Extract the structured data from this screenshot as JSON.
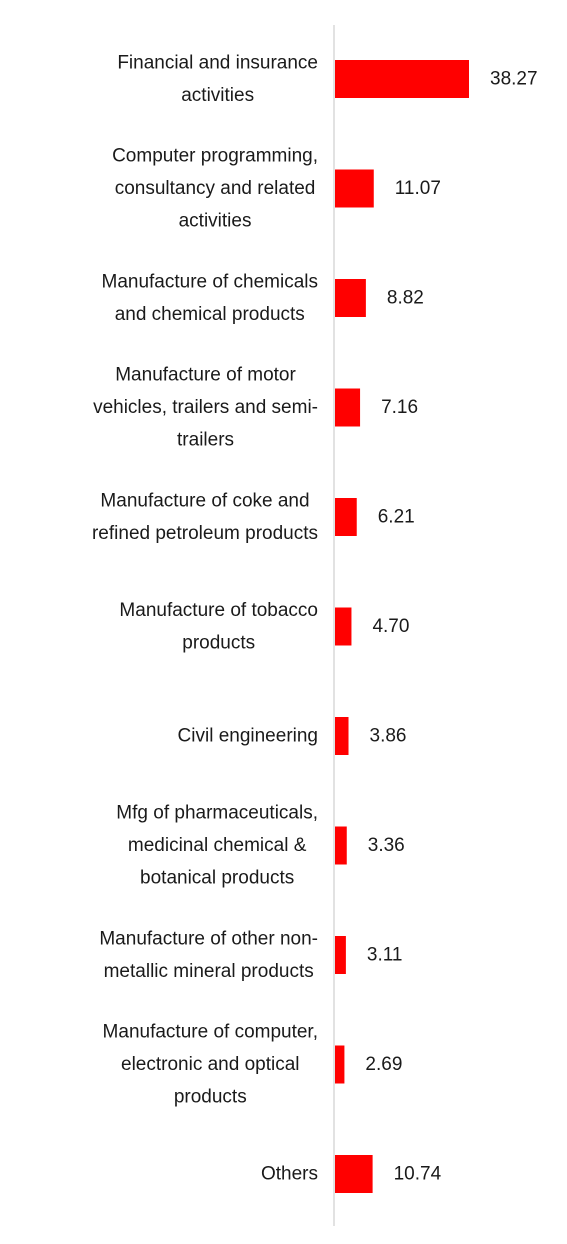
{
  "chart_data": {
    "type": "bar",
    "orientation": "horizontal",
    "categories": [
      [
        "Financial and insurance",
        "activities"
      ],
      [
        "Computer programming,",
        "consultancy and related",
        "activities"
      ],
      [
        "Manufacture of chemicals",
        "and chemical products"
      ],
      [
        "Manufacture of motor",
        "vehicles, trailers and semi-",
        "trailers"
      ],
      [
        "Manufacture of coke and",
        "refined petroleum products"
      ],
      [
        "Manufacture of tobacco",
        "products"
      ],
      [
        "Civil engineering"
      ],
      [
        "Mfg of pharmaceuticals,",
        "medicinal chemical &",
        "botanical products"
      ],
      [
        "Manufacture of other non-",
        "metallic mineral products"
      ],
      [
        "Manufacture of computer,",
        "electronic and optical",
        "products"
      ],
      [
        "Others"
      ]
    ],
    "values": [
      38.27,
      11.07,
      8.82,
      7.16,
      6.21,
      4.7,
      3.86,
      3.36,
      3.11,
      2.69,
      10.74
    ],
    "value_labels": [
      "38.27",
      "11.07",
      "8.82",
      "7.16",
      "6.21",
      "4.70",
      "3.86",
      "3.36",
      "3.11",
      "2.69",
      "10.74"
    ],
    "xlim": [
      0,
      38.27
    ],
    "grid": false,
    "legend": "none",
    "bar_color": "#ff0000",
    "axis_color": "#d9d9d9",
    "text_color": "#1a1a1a"
  }
}
